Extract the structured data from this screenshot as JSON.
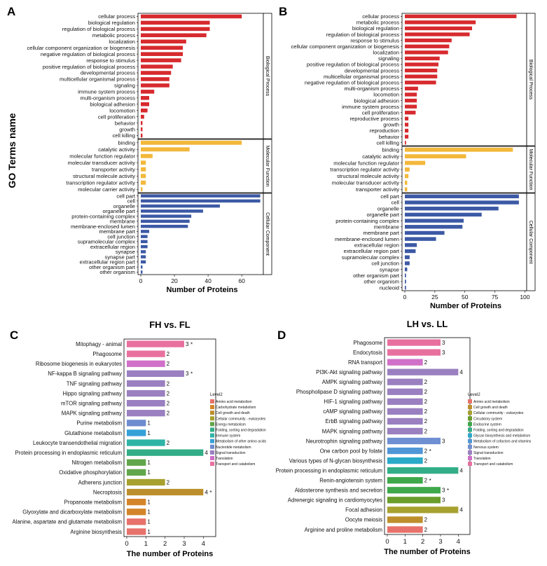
{
  "panel_labels": {
    "a": "A",
    "b": "B",
    "c": "C",
    "d": "D"
  },
  "y_axis_title": "GO Terms name",
  "colors": {
    "bp": "#d72a2e",
    "mf": "#f3b83b",
    "cc": "#3c59a5",
    "level2": {
      "Amino acid metabolism": "#e8716b",
      "Carbohydrate metabolism": "#d4852a",
      "Cell growth and death": "#bd8f2c",
      "Cellular community - eukaryotes": "#a7a12f",
      "Circulatory system": "#6a9d2b",
      "Energy metabolism": "#62a64b",
      "Endocrine system": "#3ea84b",
      "Folding, sorting and degradation": "#32ad87",
      "Immune system": "#2fb3a7",
      "Glycan biosynthesis and metabolism": "#2aa9c9",
      "Metabolism of other amino acids": "#35a0d8",
      "Metabolism of cofactors and vitamins": "#4f96d6",
      "Nervous system": "#6f8fd3",
      "Nucleotide metabolism": "#6d8bcf",
      "Signal transduction": "#9a80c0",
      "Translation": "#d070c8",
      "Transport and catabolism": "#e8709f"
    }
  },
  "chart_data": [
    {
      "id": "A",
      "type": "bar",
      "orientation": "horizontal",
      "xlabel": "Number of Proteins",
      "xlim": [
        0,
        72
      ],
      "xticks": [
        0,
        20,
        40,
        60
      ],
      "facets": [
        {
          "name": "Biological Process",
          "color_key": "bp",
          "categories": [
            "cellular process",
            "biological regulation",
            "regulation of biological process",
            "metabolic process",
            "localization",
            "cellular component organization or biogenesis",
            "negative regulation of biological process",
            "response to stimulus",
            "positive regulation of biological process",
            "developmental process",
            "multicellular organismal process",
            "signaling",
            "immune system process",
            "multi-organism process",
            "biological adhesion",
            "locomotion",
            "cell proliferation",
            "behavior",
            "growth",
            "cell killing"
          ],
          "values": [
            60,
            41,
            41,
            39,
            27,
            25,
            25,
            24,
            19,
            18,
            17,
            17,
            8,
            5,
            5,
            4,
            2,
            1,
            1,
            1
          ]
        },
        {
          "name": "Molecular Function",
          "color_key": "mf",
          "categories": [
            "binding",
            "catalytic activity",
            "molecular function regulator",
            "molecular transducer activity",
            "transporter activity",
            "structural molecule activity",
            "transcription regulator activity",
            "molecular carrier activity"
          ],
          "values": [
            60,
            29,
            7,
            3,
            3,
            3,
            3,
            1
          ]
        },
        {
          "name": "Cellular Component",
          "color_key": "cc",
          "categories": [
            "cell part",
            "cell",
            "organelle",
            "organelle part",
            "protein-containing complex",
            "membrane",
            "membrane-enclosed lumen",
            "membrane part",
            "cell junction",
            "supramolecular complex",
            "extracellular region",
            "synapse",
            "synapse part",
            "extracellular region part",
            "other organism part",
            "other organism"
          ],
          "values": [
            71,
            71,
            47,
            37,
            30,
            29,
            28,
            5,
            4,
            4,
            4,
            3,
            3,
            3,
            1,
            1
          ]
        }
      ]
    },
    {
      "id": "B",
      "type": "bar",
      "orientation": "horizontal",
      "xlabel": "Number of Proteins",
      "xlim": [
        0,
        105
      ],
      "xticks": [
        0,
        25,
        50,
        75,
        100
      ],
      "facets": [
        {
          "name": "Biological Process",
          "color_key": "bp",
          "categories": [
            "cellular process",
            "metabolic process",
            "biological regulation",
            "regulation of biological process",
            "response to stimulus",
            "cellular component organization or biogenesis",
            "localization",
            "signaling",
            "positive regulation of biological process",
            "developmental process",
            "multicellular organismal process",
            "negative regulation of biological process",
            "multi-organism process",
            "locomotion",
            "biological adhesion",
            "immune system process",
            "cell proliferation",
            "reproductive process",
            "growth",
            "reproduction",
            "behavior",
            "cell killing"
          ],
          "values": [
            93,
            59,
            56,
            54,
            39,
            37,
            36,
            29,
            28,
            27,
            27,
            26,
            11,
            10,
            10,
            10,
            9,
            3,
            3,
            3,
            3,
            1
          ]
        },
        {
          "name": "Molecular Function",
          "color_key": "mf",
          "categories": [
            "binding",
            "catalytic activity",
            "molecular function regulator",
            "transcription regulator activity",
            "structural molecule activity",
            "molecular transducer activity",
            "transporter activity"
          ],
          "values": [
            90,
            51,
            17,
            4,
            3,
            2,
            2
          ]
        },
        {
          "name": "Cellular Component",
          "color_key": "cc",
          "categories": [
            "cell part",
            "cell",
            "organelle",
            "organelle part",
            "protein-containing complex",
            "membrane",
            "membrane part",
            "membrane-enclosed lumen",
            "extracellular region",
            "extracellular region part",
            "supramolecular complex",
            "cell junction",
            "synapse",
            "other organism part",
            "other organism",
            "nucleoid"
          ],
          "values": [
            95,
            95,
            78,
            64,
            49,
            48,
            33,
            26,
            10,
            9,
            4,
            4,
            2,
            1,
            1,
            1
          ]
        }
      ]
    },
    {
      "id": "C",
      "type": "bar",
      "orientation": "horizontal",
      "title": "FH vs. FL",
      "xlabel": "The number of Proteins",
      "xlim": [
        0,
        4.5
      ],
      "xticks": [
        0,
        1,
        2,
        3,
        4
      ],
      "legend_title": "Level2",
      "legend": [
        "Amino acid metabolism",
        "Carbohydrate metabolism",
        "Cell growth and death",
        "Cellular community - eukaryotes",
        "Energy metabolism",
        "Folding, sorting and degradation",
        "Immune system",
        "Metabolism of other amino acids",
        "Nucleotide metabolism",
        "Signal transduction",
        "Translation",
        "Transport and catabolism"
      ],
      "categories": [
        "Mitophagy - animal",
        "Phagosome",
        "Ribosome biogenesis in eukaryotes",
        "NF-kappa B signaling pathway",
        "TNF signaling pathway",
        "Hippo signaling pathway",
        "mTOR signaling pathway",
        "MAPK signaling pathway",
        "Purine metabolism",
        "Glutathione metabolism",
        "Leukocyte transendothelial migration",
        "Protein processing in endoplasmic reticulum",
        "Nitrogen metabolism",
        "Oxidative phosphorylation",
        "Adherens junction",
        "Necroptosis",
        "Propanoate metabolism",
        "Glyoxylate and dicarboxylate metabolism",
        "Alanine, aspartate and glutamate metabolism",
        "Arginine biosynthesis"
      ],
      "values": [
        3,
        2,
        2,
        3,
        2,
        2,
        2,
        2,
        1,
        1,
        2,
        4,
        1,
        1,
        2,
        4,
        1,
        1,
        1,
        1
      ],
      "labels": [
        "3",
        "2",
        "2",
        "3",
        "2",
        "2",
        "2",
        "2",
        "1",
        "1",
        "2",
        "4",
        "1",
        "1",
        "2",
        "4",
        "1",
        "1",
        "1",
        "1"
      ],
      "stars": [
        "*",
        "",
        "",
        "*",
        "",
        "",
        "",
        "",
        "",
        "",
        "",
        "*",
        "",
        "",
        "",
        "*",
        "",
        "",
        "",
        ""
      ],
      "groups": [
        "Transport and catabolism",
        "Transport and catabolism",
        "Translation",
        "Signal transduction",
        "Signal transduction",
        "Signal transduction",
        "Signal transduction",
        "Signal transduction",
        "Nucleotide metabolism",
        "Metabolism of other amino acids",
        "Immune system",
        "Folding, sorting and degradation",
        "Energy metabolism",
        "Energy metabolism",
        "Cellular community - eukaryotes",
        "Cell growth and death",
        "Carbohydrate metabolism",
        "Carbohydrate metabolism",
        "Amino acid metabolism",
        "Amino acid metabolism"
      ]
    },
    {
      "id": "D",
      "type": "bar",
      "orientation": "horizontal",
      "title": "LH vs. LL",
      "xlabel": "The number of Proteins",
      "xlim": [
        0,
        4.5
      ],
      "xticks": [
        0,
        1,
        2,
        3,
        4
      ],
      "legend_title": "Level2",
      "legend": [
        "Amino acid metabolism",
        "Cell growth and death",
        "Cellular community - eukaryotes",
        "Circulatory system",
        "Endocrine system",
        "Folding, sorting and degradation",
        "Glycan biosynthesis and metabolism",
        "Metabolism of cofactors and vitamins",
        "Nervous system",
        "Signal transduction",
        "Translation",
        "Transport and catabolism"
      ],
      "categories": [
        "Phagosome",
        "Endocytosis",
        "RNA transport",
        "PI3K-Akt signaling pathway",
        "AMPK signaling pathway",
        "Phospholipase D signaling pathway",
        "HIF-1 signaling pathway",
        "cAMP signaling pathway",
        "ErbB signaling pathway",
        "MAPK signaling pathway",
        "Neurotrophin signaling pathway",
        "One carbon pool by folate",
        "Various types of N-glycan biosynthesis",
        "Protein processing in endoplasmic reticulum",
        "Renin-angiotensin system",
        "Aldosterone synthesis and secretion",
        "Adrenergic signaling in cardiomyocytes",
        "Focal adhesion",
        "Oocyte meiosis",
        "Arginine and proline metabolism"
      ],
      "values": [
        3,
        3,
        2,
        4,
        2,
        2,
        2,
        2,
        2,
        2,
        3,
        2,
        2,
        4,
        2,
        3,
        3,
        4,
        2,
        2
      ],
      "labels": [
        "3",
        "3",
        "2",
        "4",
        "2",
        "2",
        "2",
        "2",
        "2",
        "2",
        "3",
        "2",
        "2",
        "4",
        "2",
        "3",
        "3",
        "4",
        "2",
        "2"
      ],
      "stars": [
        "",
        "",
        "",
        "",
        "",
        "",
        "",
        "",
        "",
        "",
        "",
        "*",
        "",
        "",
        "*",
        "*",
        "",
        "",
        "",
        ""
      ],
      "groups": [
        "Transport and catabolism",
        "Transport and catabolism",
        "Translation",
        "Signal transduction",
        "Signal transduction",
        "Signal transduction",
        "Signal transduction",
        "Signal transduction",
        "Signal transduction",
        "Signal transduction",
        "Nervous system",
        "Metabolism of cofactors and vitamins",
        "Glycan biosynthesis and metabolism",
        "Folding, sorting and degradation",
        "Endocrine system",
        "Endocrine system",
        "Circulatory system",
        "Cellular community - eukaryotes",
        "Cell growth and death",
        "Amino acid metabolism"
      ]
    }
  ]
}
